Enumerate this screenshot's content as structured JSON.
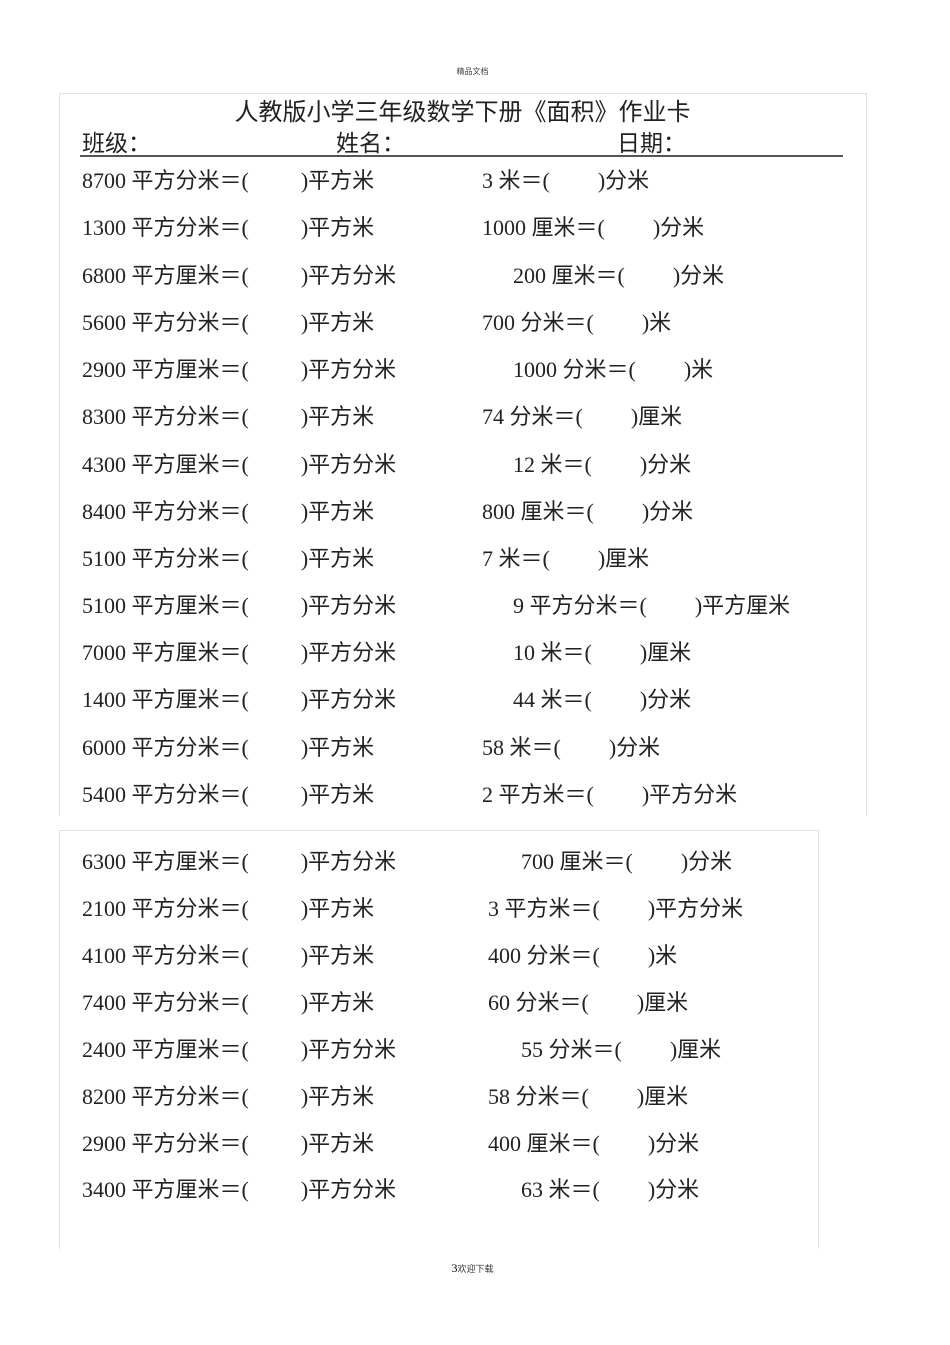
{
  "header_watermark": "精品文档",
  "title": "人教版小学三年级数学下册《面积》作业卡",
  "fields": {
    "class": "班级：",
    "name": "姓名：",
    "date": "日期："
  },
  "section1": [
    {
      "l_pre": "8700 平方分米＝(",
      "l_post": ")平方米",
      "r_pre": "3 米＝(",
      "r_post": ")分米"
    },
    {
      "l_pre": "1300 平方分米＝(",
      "l_post": ")平方米",
      "r_pre": "1000 厘米＝(",
      "r_post": ")分米"
    },
    {
      "l_pre": "6800 平方厘米＝(",
      "l_post": ")平方分米",
      "r_pre": "200 厘米＝(",
      "r_post": ")分米"
    },
    {
      "l_pre": "5600 平方分米＝(",
      "l_post": ")平方米",
      "r_pre": "700 分米＝(",
      "r_post": ")米"
    },
    {
      "l_pre": "2900 平方厘米＝(",
      "l_post": ")平方分米",
      "r_pre": "1000 分米＝(",
      "r_post": ")米"
    },
    {
      "l_pre": "8300 平方分米＝(",
      "l_post": ")平方米",
      "r_pre": "74 分米＝(",
      "r_post": ")厘米"
    },
    {
      "l_pre": "4300 平方厘米＝(",
      "l_post": ")平方分米",
      "r_pre": "12 米＝(",
      "r_post": ")分米"
    },
    {
      "l_pre": "8400 平方分米＝(",
      "l_post": ")平方米",
      "r_pre": "800 厘米＝(",
      "r_post": ")分米"
    },
    {
      "l_pre": "5100 平方分米＝(",
      "l_post": ")平方米",
      "r_pre": "7 米＝(",
      "r_post": ")厘米"
    },
    {
      "l_pre": "5100 平方厘米＝(",
      "l_post": ")平方分米",
      "r_pre": "9 平方分米＝(",
      "r_post": ")平方厘米"
    },
    {
      "l_pre": "7000 平方厘米＝(",
      "l_post": ")平方分米",
      "r_pre": "10 米＝(",
      "r_post": ")厘米"
    },
    {
      "l_pre": "1400 平方厘米＝(",
      "l_post": ")平方分米",
      "r_pre": "44 米＝(",
      "r_post": ")分米"
    },
    {
      "l_pre": "6000 平方分米＝(",
      "l_post": ")平方米",
      "r_pre": "58 米＝(",
      "r_post": ")分米"
    },
    {
      "l_pre": "5400 平方分米＝(",
      "l_post": ")平方米",
      "r_pre": "2 平方米＝(",
      "r_post": ")平方分米"
    }
  ],
  "section2": [
    {
      "l_pre": "6300 平方厘米＝(",
      "l_post": ")平方分米",
      "r_pre": "700 厘米＝(",
      "r_post": ")分米"
    },
    {
      "l_pre": "2100 平方分米＝(",
      "l_post": ")平方米",
      "r_pre": "3 平方米＝(",
      "r_post": ")平方分米"
    },
    {
      "l_pre": "4100 平方分米＝(",
      "l_post": ")平方米",
      "r_pre": "400 分米＝(",
      "r_post": ")米"
    },
    {
      "l_pre": "7400 平方分米＝(",
      "l_post": ")平方米",
      "r_pre": "60 分米＝(",
      "r_post": ")厘米"
    },
    {
      "l_pre": "2400 平方厘米＝(",
      "l_post": ")平方分米",
      "r_pre": "55 分米＝(",
      "r_post": ")厘米"
    },
    {
      "l_pre": "8200 平方分米＝(",
      "l_post": ")平方米",
      "r_pre": "58 分米＝(",
      "r_post": ")厘米"
    },
    {
      "l_pre": "2900 平方分米＝(",
      "l_post": ")平方米",
      "r_pre": "400 厘米＝(",
      "r_post": ")分米"
    },
    {
      "l_pre": "3400 平方厘米＝(",
      "l_post": ")平方分米",
      "r_pre": "63 米＝(",
      "r_post": ")分米"
    }
  ],
  "footer": {
    "page_number": "3",
    "text": "欢迎下载"
  }
}
